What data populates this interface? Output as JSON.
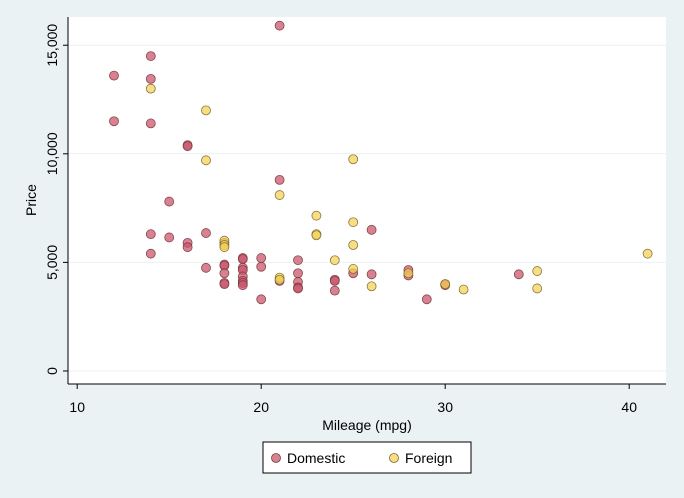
{
  "chart_data": {
    "type": "scatter",
    "title": "",
    "xlabel": "Mileage (mpg)",
    "ylabel": "Price",
    "xlim": [
      9.5,
      42
    ],
    "ylim": [
      -600,
      16300
    ],
    "x_ticks": [
      10,
      20,
      30,
      40
    ],
    "x_tick_labels": [
      "10",
      "20",
      "30",
      "40"
    ],
    "y_ticks": [
      0,
      5000,
      10000,
      15000
    ],
    "y_tick_labels": [
      "0",
      "5,000",
      "10,000",
      "15,000"
    ],
    "grid": "horizontal",
    "legend_position": "bottom",
    "series": [
      {
        "name": "Domestic",
        "color": "#c9576f",
        "points": [
          [
            12,
            13600
          ],
          [
            12,
            11500
          ],
          [
            14,
            14500
          ],
          [
            14,
            13450
          ],
          [
            14,
            11400
          ],
          [
            14,
            6300
          ],
          [
            14,
            5400
          ],
          [
            15,
            7800
          ],
          [
            15,
            6150
          ],
          [
            16,
            10400
          ],
          [
            16,
            10350
          ],
          [
            16,
            5900
          ],
          [
            16,
            5700
          ],
          [
            17,
            6350
          ],
          [
            17,
            4750
          ],
          [
            18,
            5900
          ],
          [
            18,
            4900
          ],
          [
            18,
            4850
          ],
          [
            18,
            4500
          ],
          [
            18,
            4050
          ],
          [
            18,
            4000
          ],
          [
            19,
            5200
          ],
          [
            19,
            5150
          ],
          [
            19,
            4750
          ],
          [
            19,
            4650
          ],
          [
            19,
            4350
          ],
          [
            19,
            4150
          ],
          [
            19,
            4050
          ],
          [
            19,
            3950
          ],
          [
            20,
            5200
          ],
          [
            20,
            4800
          ],
          [
            20,
            3300
          ],
          [
            21,
            15900
          ],
          [
            21,
            8800
          ],
          [
            21,
            4150
          ],
          [
            22,
            5100
          ],
          [
            22,
            4500
          ],
          [
            22,
            4100
          ],
          [
            22,
            3850
          ],
          [
            22,
            3800
          ],
          [
            24,
            4200
          ],
          [
            24,
            4150
          ],
          [
            24,
            3700
          ],
          [
            25,
            4500
          ],
          [
            26,
            6500
          ],
          [
            26,
            4450
          ],
          [
            28,
            4650
          ],
          [
            28,
            4400
          ],
          [
            29,
            3300
          ],
          [
            30,
            4000
          ],
          [
            34,
            4450
          ],
          [
            30,
            3950
          ]
        ]
      },
      {
        "name": "Foreign",
        "color": "#f4d25a",
        "points": [
          [
            14,
            13000
          ],
          [
            17,
            12000
          ],
          [
            17,
            9700
          ],
          [
            18,
            6000
          ],
          [
            18,
            5800
          ],
          [
            18,
            5700
          ],
          [
            21,
            8100
          ],
          [
            21,
            4300
          ],
          [
            21,
            4200
          ],
          [
            23,
            7150
          ],
          [
            23,
            6300
          ],
          [
            23,
            6250
          ],
          [
            24,
            5100
          ],
          [
            25,
            9750
          ],
          [
            25,
            6850
          ],
          [
            25,
            5800
          ],
          [
            25,
            4700
          ],
          [
            26,
            3900
          ],
          [
            28,
            4500
          ],
          [
            30,
            4000
          ],
          [
            31,
            3750
          ],
          [
            35,
            4600
          ],
          [
            35,
            3800
          ],
          [
            41,
            5400
          ]
        ]
      }
    ]
  }
}
